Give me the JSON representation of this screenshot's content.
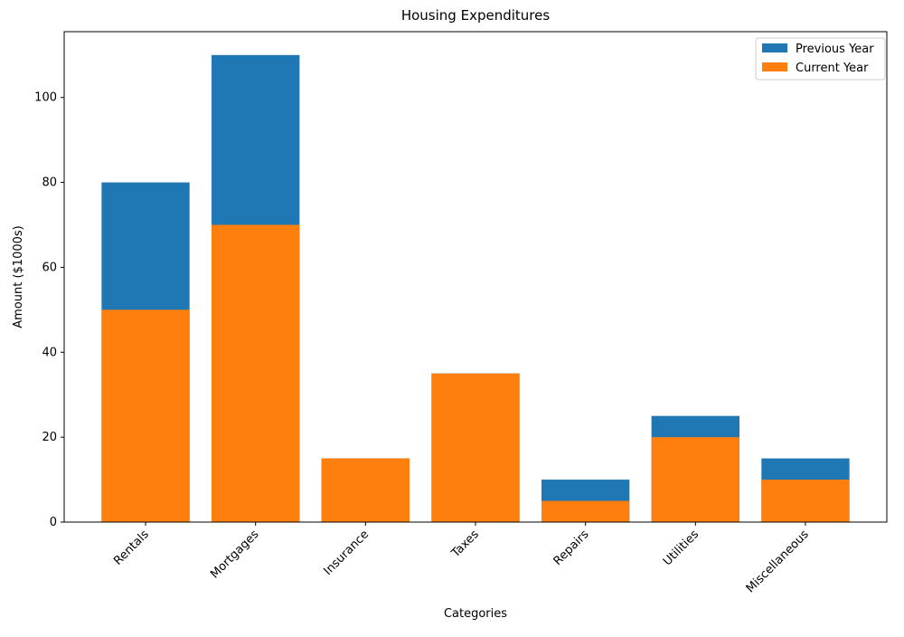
{
  "chart_data": {
    "type": "bar",
    "title": "Housing Expenditures",
    "xlabel": "Categories",
    "ylabel": "Amount ($1000s)",
    "categories": [
      "Rentals",
      "Mortgages",
      "Insurance",
      "Taxes",
      "Repairs",
      "Utilities",
      "Miscellaneous"
    ],
    "series": [
      {
        "name": "Previous Year",
        "color": "#1f77b4",
        "values": [
          80,
          110,
          15,
          35,
          10,
          25,
          15
        ]
      },
      {
        "name": "Current Year",
        "color": "#ff7f0e",
        "values": [
          50,
          70,
          15,
          35,
          5,
          20,
          10
        ]
      }
    ],
    "ylim": [
      0,
      115.5
    ],
    "yticks": [
      0,
      20,
      40,
      60,
      80,
      100
    ],
    "legend": "upper right"
  }
}
